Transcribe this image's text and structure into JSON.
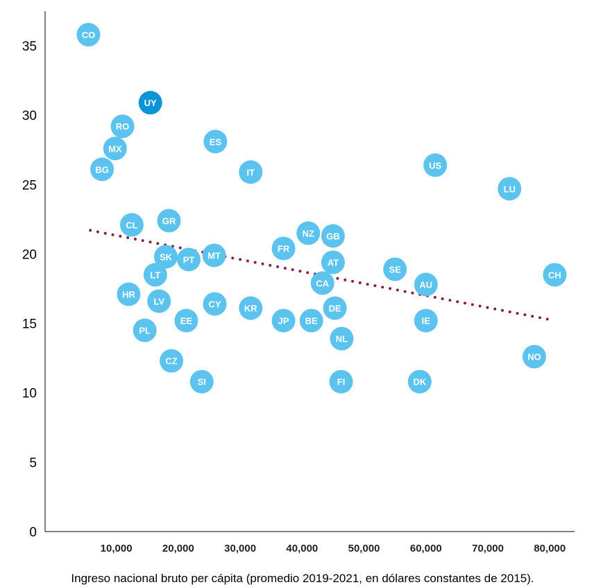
{
  "chart_data": {
    "type": "scatter",
    "title": "",
    "xlabel": "Ingreso nacional bruto per cápita (promedio 2019-2021, en dólares constantes de 2015).",
    "ylabel": "",
    "xlim": [
      -1500,
      84000
    ],
    "ylim": [
      0,
      37.5
    ],
    "x_ticks": [
      10000,
      20000,
      30000,
      40000,
      50000,
      60000,
      70000,
      80000
    ],
    "x_tick_labels": [
      "10,000",
      "20,000",
      "30,000",
      "40,000",
      "50,000",
      "60,000",
      "70,000",
      "80,000"
    ],
    "y_ticks": [
      0,
      5,
      10,
      15,
      20,
      25,
      30,
      35
    ],
    "y_tick_labels": [
      "0",
      "5",
      "10",
      "15",
      "20",
      "25",
      "30",
      "35"
    ],
    "grid": false,
    "legend": "none",
    "colors": {
      "point": "#5bc3ee",
      "highlight": "#0a96d6",
      "trend": "#8b1a3e"
    },
    "highlight": "UY",
    "points": [
      {
        "label": "CO",
        "x": 5500,
        "y": 35.8
      },
      {
        "label": "UY",
        "x": 15500,
        "y": 30.9
      },
      {
        "label": "RO",
        "x": 11000,
        "y": 29.2
      },
      {
        "label": "MX",
        "x": 9800,
        "y": 27.6
      },
      {
        "label": "BG",
        "x": 7700,
        "y": 26.1
      },
      {
        "label": "ES",
        "x": 26000,
        "y": 28.1
      },
      {
        "label": "IT",
        "x": 31700,
        "y": 25.9
      },
      {
        "label": "US",
        "x": 61500,
        "y": 26.4
      },
      {
        "label": "LU",
        "x": 73500,
        "y": 24.7
      },
      {
        "label": "CL",
        "x": 12500,
        "y": 22.1
      },
      {
        "label": "GR",
        "x": 18500,
        "y": 22.4
      },
      {
        "label": "NZ",
        "x": 41000,
        "y": 21.5
      },
      {
        "label": "GB",
        "x": 45000,
        "y": 21.3
      },
      {
        "label": "FR",
        "x": 37000,
        "y": 20.4
      },
      {
        "label": "SK",
        "x": 18000,
        "y": 19.8
      },
      {
        "label": "PT",
        "x": 21700,
        "y": 19.6
      },
      {
        "label": "MT",
        "x": 25800,
        "y": 19.9
      },
      {
        "label": "AT",
        "x": 45000,
        "y": 19.4
      },
      {
        "label": "SE",
        "x": 55000,
        "y": 18.9
      },
      {
        "label": "CH",
        "x": 80800,
        "y": 18.5
      },
      {
        "label": "LT",
        "x": 16300,
        "y": 18.5
      },
      {
        "label": "CA",
        "x": 43300,
        "y": 17.9
      },
      {
        "label": "AU",
        "x": 60000,
        "y": 17.8
      },
      {
        "label": "HR",
        "x": 12000,
        "y": 17.1
      },
      {
        "label": "LV",
        "x": 16900,
        "y": 16.6
      },
      {
        "label": "CY",
        "x": 25900,
        "y": 16.4
      },
      {
        "label": "KR",
        "x": 31700,
        "y": 16.1
      },
      {
        "label": "DE",
        "x": 45300,
        "y": 16.1
      },
      {
        "label": "EE",
        "x": 21300,
        "y": 15.2
      },
      {
        "label": "JP",
        "x": 37000,
        "y": 15.2
      },
      {
        "label": "BE",
        "x": 41500,
        "y": 15.2
      },
      {
        "label": "IE",
        "x": 60000,
        "y": 15.2
      },
      {
        "label": "PL",
        "x": 14600,
        "y": 14.5
      },
      {
        "label": "NL",
        "x": 46400,
        "y": 13.9
      },
      {
        "label": "NO",
        "x": 77500,
        "y": 12.6
      },
      {
        "label": "CZ",
        "x": 18900,
        "y": 12.3
      },
      {
        "label": "SI",
        "x": 23800,
        "y": 10.8
      },
      {
        "label": "FI",
        "x": 46300,
        "y": 10.8
      },
      {
        "label": "DK",
        "x": 59000,
        "y": 10.8
      }
    ],
    "trendline": {
      "x": [
        5800,
        80800
      ],
      "y": [
        21.7,
        15.2
      ]
    }
  }
}
